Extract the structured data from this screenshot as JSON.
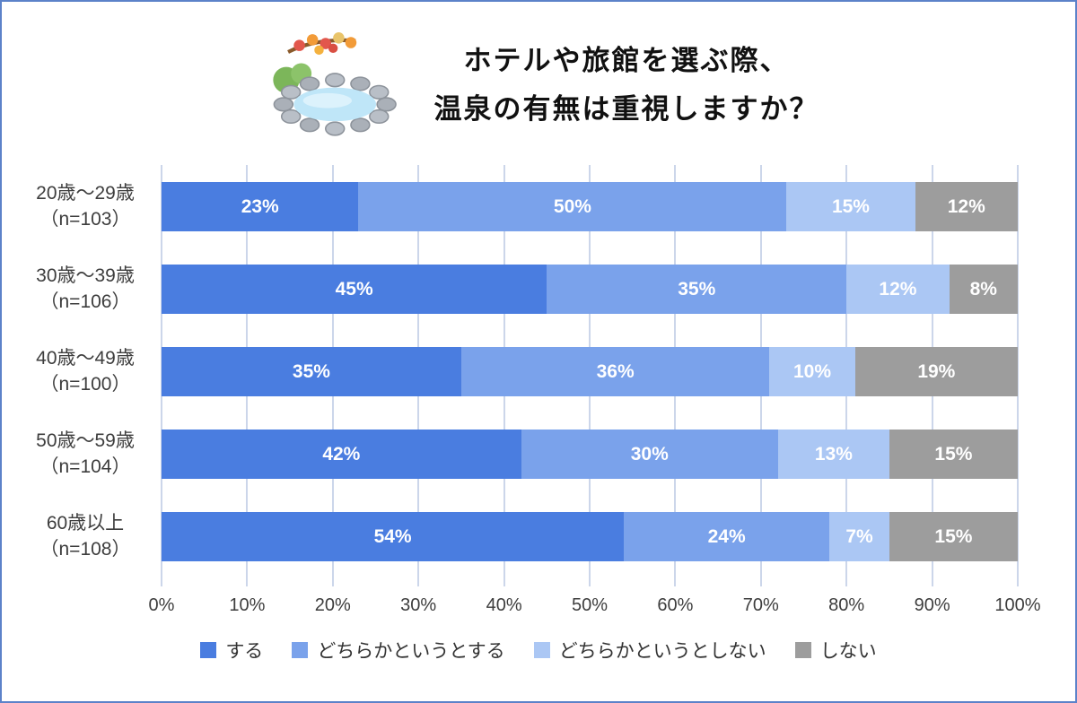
{
  "page": {
    "border_color": "#5c82c9"
  },
  "header": {
    "title_line1": "ホテルや旅館を選ぶ際、",
    "title_line2": "温泉の有無は重視しますか？",
    "icon": "onsen-icon"
  },
  "chart_data": {
    "type": "bar",
    "orientation": "horizontal",
    "stacked": true,
    "title": "ホテルや旅館を選ぶ際、温泉の有無は重視しますか？",
    "categories": [
      {
        "label": "20歳〜29歳",
        "n": "（n=103）"
      },
      {
        "label": "30歳〜39歳",
        "n": "（n=106）"
      },
      {
        "label": "40歳〜49歳",
        "n": "（n=100）"
      },
      {
        "label": "50歳〜59歳",
        "n": "（n=104）"
      },
      {
        "label": "60歳以上",
        "n": "（n=108）"
      }
    ],
    "series": [
      {
        "name": "する",
        "color": "#4a7de0",
        "values": [
          23,
          45,
          35,
          42,
          54
        ]
      },
      {
        "name": "どちらかというとする",
        "color": "#7aa2eb",
        "values": [
          50,
          35,
          36,
          30,
          24
        ]
      },
      {
        "name": "どちらかというとしない",
        "color": "#abc7f4",
        "values": [
          15,
          12,
          10,
          13,
          7
        ]
      },
      {
        "name": "しない",
        "color": "#9d9d9d",
        "values": [
          12,
          8,
          19,
          15,
          15
        ]
      }
    ],
    "value_suffix": "%",
    "xlim": [
      0,
      100
    ],
    "x_tick_step": 10,
    "x_ticks": [
      "0%",
      "10%",
      "20%",
      "30%",
      "40%",
      "50%",
      "60%",
      "70%",
      "80%",
      "90%",
      "100%"
    ],
    "grid": true,
    "legend_position": "bottom"
  }
}
